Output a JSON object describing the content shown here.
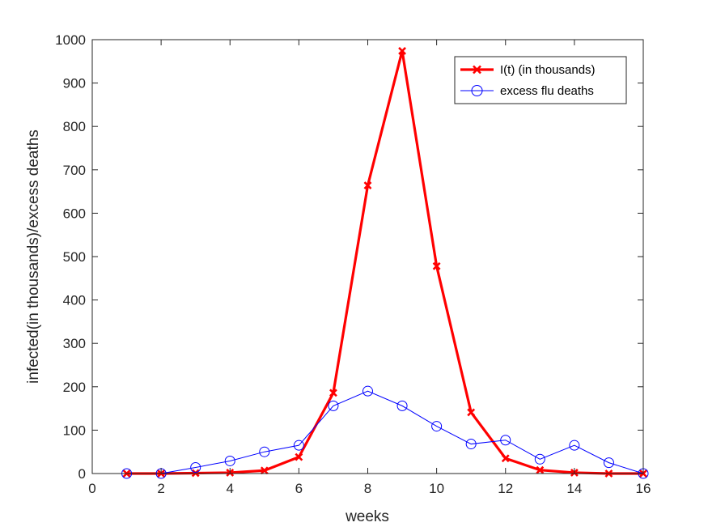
{
  "chart_data": {
    "type": "line",
    "xlabel": "weeks",
    "ylabel": "infected(in thousands)/excess deaths",
    "xlim": [
      0,
      16
    ],
    "ylim": [
      0,
      1000
    ],
    "xticks": [
      0,
      2,
      4,
      6,
      8,
      10,
      12,
      14,
      16
    ],
    "yticks": [
      0,
      100,
      200,
      300,
      400,
      500,
      600,
      700,
      800,
      900,
      1000
    ],
    "grid": false,
    "legend_position": "top-right",
    "series": [
      {
        "name": "I(t) (in thousands)",
        "color": "#ff0000",
        "marker": "x",
        "x": [
          1,
          2,
          3,
          4,
          5,
          6,
          7,
          8,
          9,
          10,
          11,
          12,
          13,
          14,
          15,
          16
        ],
        "y": [
          0,
          0,
          1,
          2,
          7,
          38,
          186,
          664,
          974,
          478,
          141,
          35,
          8,
          2,
          0,
          0
        ]
      },
      {
        "name": "excess flu deaths",
        "color": "#0000ff",
        "marker": "o",
        "x": [
          1,
          2,
          3,
          4,
          5,
          6,
          7,
          8,
          9,
          10,
          11,
          12,
          13,
          14,
          15,
          16
        ],
        "y": [
          0,
          0,
          14,
          29,
          50,
          65,
          156,
          190,
          156,
          109,
          68,
          77,
          33,
          65,
          25,
          0
        ]
      }
    ]
  }
}
